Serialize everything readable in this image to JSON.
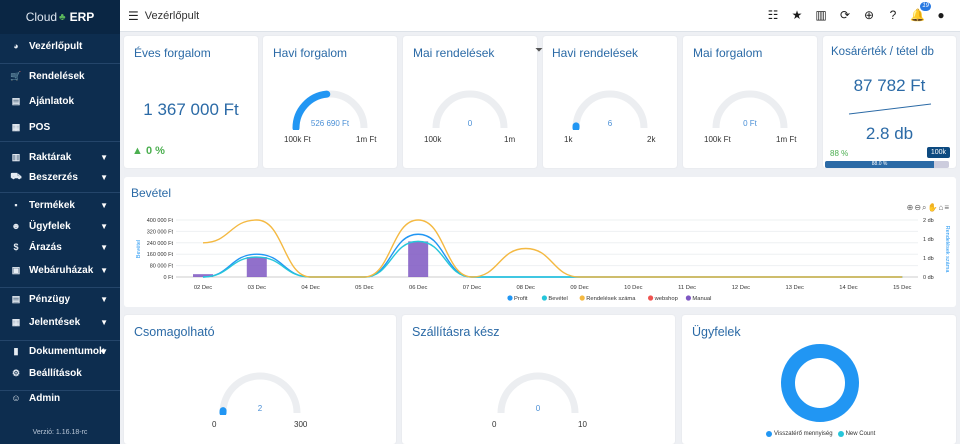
{
  "brand": {
    "name_a": "Cloud",
    "name_b": "ERP"
  },
  "sidebar": {
    "items": [
      {
        "label": "Vezérlőpult",
        "icon": "dashboard-icon",
        "glyph": "◕"
      },
      {
        "label": "Rendelések",
        "icon": "cart-icon",
        "glyph": "🛒"
      },
      {
        "label": "Ajánlatok",
        "icon": "document-icon",
        "glyph": "▤"
      },
      {
        "label": "POS",
        "icon": "pos-icon",
        "glyph": "▦"
      },
      {
        "label": "Raktárak",
        "icon": "warehouse-icon",
        "glyph": "▥"
      },
      {
        "label": "Beszerzés",
        "icon": "truck-icon",
        "glyph": "⛟"
      },
      {
        "label": "Termékek",
        "icon": "products-icon",
        "glyph": "▪"
      },
      {
        "label": "Ügyfelek",
        "icon": "users-icon",
        "glyph": "☻"
      },
      {
        "label": "Árazás",
        "icon": "dollar-icon",
        "glyph": "$"
      },
      {
        "label": "Webáruházak",
        "icon": "store-icon",
        "glyph": "▣"
      },
      {
        "label": "Pénzügy",
        "icon": "bank-icon",
        "glyph": "▤"
      },
      {
        "label": "Jelentések",
        "icon": "table-icon",
        "glyph": "▦"
      },
      {
        "label": "Dokumentumok",
        "icon": "file-icon",
        "glyph": "▮"
      },
      {
        "label": "Beállítások",
        "icon": "gear-icon",
        "glyph": "⚙"
      },
      {
        "label": "Admin",
        "icon": "admin-icon",
        "glyph": "☺"
      }
    ],
    "version": "Verzió: 1.16.18-rc"
  },
  "topbar": {
    "title": "Vezérlőpult",
    "notification_count": "19"
  },
  "cards": {
    "annual": {
      "title": "Éves forgalom",
      "value": "1 367 000 Ft",
      "change": "0 %"
    },
    "monthly": {
      "title": "Havi forgalom",
      "value": "526 690 Ft",
      "min": "100k Ft",
      "max": "1m Ft",
      "fraction": 0.47
    },
    "daily_orders": {
      "title": "Mai rendelések",
      "value": "0",
      "min": "100k",
      "max": "1m",
      "fraction": 0
    },
    "monthly_orders": {
      "title": "Havi rendelések",
      "value": "6",
      "min": "1k",
      "max": "2k",
      "fraction": 0.005
    },
    "daily_revenue": {
      "title": "Mai forgalom",
      "value": "0 Ft",
      "min": "100k Ft",
      "max": "1m Ft",
      "fraction": 0
    },
    "basket": {
      "title": "Kosárérték / tétel db",
      "value": "87 782 Ft",
      "items": "2.8 db",
      "percent": "88 %",
      "target": "100k",
      "progress": "88.0 %"
    },
    "packable": {
      "title": "Csomagolható",
      "value": "2",
      "min": "0",
      "max": "300",
      "fraction": 0.007
    },
    "shippable": {
      "title": "Szállításra kész",
      "value": "0",
      "min": "0",
      "max": "10",
      "fraction": 0
    },
    "customers": {
      "title": "Ügyfelek",
      "legend_a": "Visszatérő mennyiség",
      "legend_b": "New Count"
    }
  },
  "chart_data": {
    "type": "line",
    "title": "Bevétel",
    "categories": [
      "02 Dec",
      "03 Dec",
      "04 Dec",
      "05 Dec",
      "06 Dec",
      "07 Dec",
      "08 Dec",
      "09 Dec",
      "10 Dec",
      "11 Dec",
      "12 Dec",
      "13 Dec",
      "14 Dec",
      "15 Dec"
    ],
    "y_left_ticks": [
      "0 Ft",
      "80 000 Ft",
      "160 000 Ft",
      "240 000 Ft",
      "320 000 Ft",
      "400 000 Ft"
    ],
    "y_right_ticks": [
      "0 db",
      "1 db",
      "1 db",
      "2 db"
    ],
    "ylabel_left": "Bevétel",
    "ylabel_right": "Rendelések száma",
    "ylim": [
      0,
      400000
    ],
    "series": [
      {
        "name": "Profit",
        "color": "#2196f3",
        "values": [
          0,
          160000,
          0,
          0,
          300000,
          0,
          0,
          0,
          0,
          0,
          0,
          0,
          0,
          0
        ]
      },
      {
        "name": "Bevétel",
        "color": "#26c6da",
        "values": [
          0,
          140000,
          0,
          0,
          250000,
          0,
          0,
          0,
          0,
          0,
          0,
          0,
          0,
          0
        ]
      },
      {
        "name": "Rendelések száma",
        "color": "#f4b942",
        "values": [
          1.2,
          2,
          0,
          0,
          2,
          0,
          1,
          0,
          0,
          0,
          0,
          0,
          0,
          0
        ]
      },
      {
        "name": "webshop",
        "color": "#ef5350",
        "values": [
          0,
          0,
          0,
          0,
          0,
          0,
          0,
          0,
          0,
          0,
          0,
          0,
          0,
          0
        ]
      },
      {
        "name": "Manual",
        "color": "#7e57c2",
        "values": [
          20000,
          140000,
          0,
          0,
          250000,
          0,
          0,
          0,
          0,
          0,
          0,
          0,
          0,
          0
        ]
      }
    ]
  }
}
